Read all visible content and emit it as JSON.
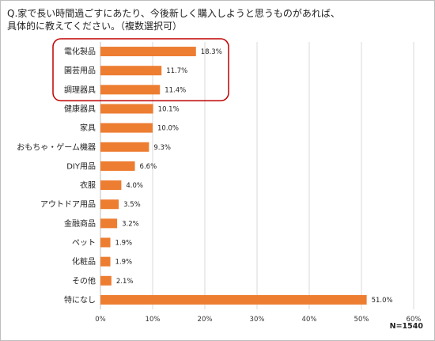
{
  "question": "Q.家で長い時間過ごすにあたり、今後新しく購入しようと思うものがあれば、\n具体的に教えてください。（複数選択可）",
  "sample_note": "N=1540",
  "colors": {
    "bar": "#ed7d31",
    "highlight_box": "#c00000",
    "grid": "#d9d9d9"
  },
  "chart_data": {
    "type": "bar",
    "orientation": "horizontal",
    "categories": [
      "電化製品",
      "園芸用品",
      "調理器具",
      "健康器具",
      "家具",
      "おもちゃ・ゲーム機器",
      "DIY用品",
      "衣服",
      "アウトドア用品",
      "金融商品",
      "ペット",
      "化粧品",
      "その他",
      "特になし"
    ],
    "values": [
      18.3,
      11.7,
      11.4,
      10.1,
      10.0,
      9.3,
      6.6,
      4.0,
      3.5,
      3.2,
      1.9,
      1.9,
      2.1,
      51.0
    ],
    "value_labels": [
      "18.3%",
      "11.7%",
      "11.4%",
      "10.1%",
      "10.0%",
      "9.3%",
      "6.6%",
      "4.0%",
      "3.5%",
      "3.2%",
      "1.9%",
      "1.9%",
      "2.1%",
      "51.0%"
    ],
    "xlim": [
      0,
      60
    ],
    "xticks": [
      0,
      10,
      20,
      30,
      40,
      50,
      60
    ],
    "xtick_labels": [
      "0%",
      "10%",
      "20%",
      "30%",
      "40%",
      "50%",
      "60%"
    ],
    "grid": true,
    "highlighted_categories": [
      "電化製品",
      "園芸用品",
      "調理器具"
    ]
  }
}
